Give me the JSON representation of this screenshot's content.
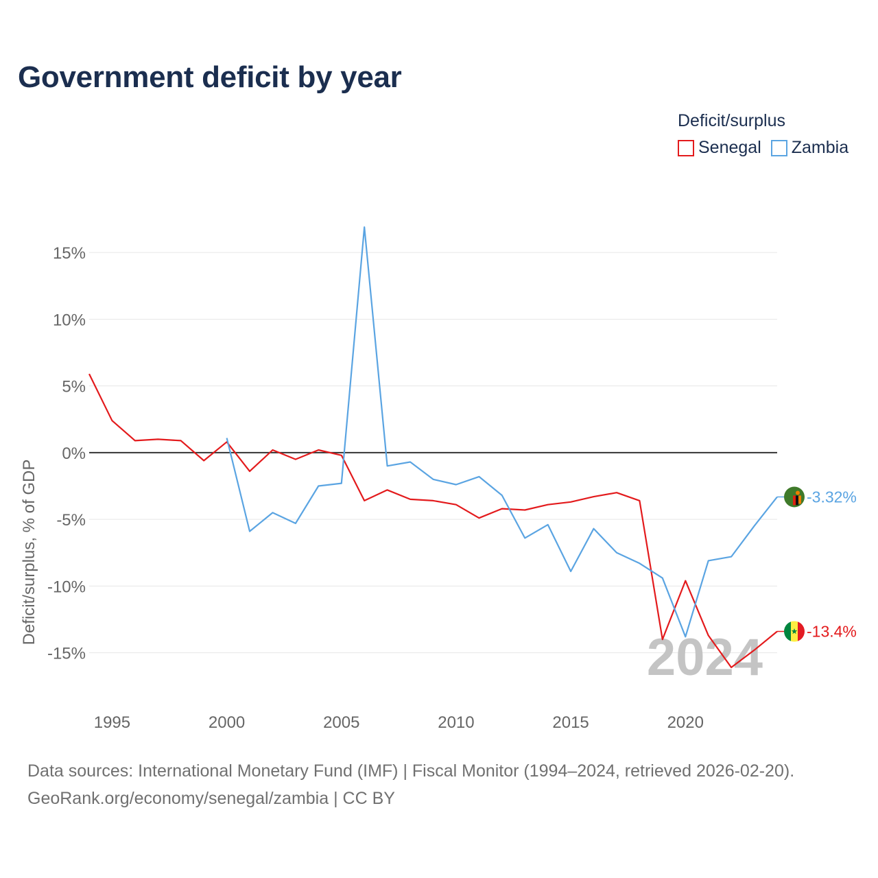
{
  "title": "Government deficit by year",
  "legend": {
    "title": "Deficit/surplus",
    "items": [
      {
        "label": "Senegal",
        "color": "#e31a1c"
      },
      {
        "label": "Zambia",
        "color": "#5aa4e2"
      }
    ]
  },
  "footer": {
    "line1": "Data sources: International Monetary Fund (IMF) | Fiscal Monitor (1994–2024, retrieved 2026-02-20).",
    "line2": "GeoRank.org/economy/senegal/zambia | CC BY"
  },
  "chart_data": {
    "type": "line",
    "title": "Government deficit by year",
    "ylabel": "Deficit/surplus, % of GDP",
    "xlabel": "",
    "xlim": [
      1994,
      2024
    ],
    "ylim": [
      -18,
      18.5
    ],
    "yticks": [
      15,
      10,
      5,
      0,
      -5,
      -10,
      -15
    ],
    "ytick_labels": [
      "15%",
      "10%",
      "5%",
      "0%",
      "-5%",
      "-10%",
      "-15%"
    ],
    "xticks": [
      1995,
      2000,
      2005,
      2010,
      2015,
      2020
    ],
    "xtick_labels": [
      "1995",
      "2000",
      "2005",
      "2010",
      "2015",
      "2020"
    ],
    "year_watermark": "2024",
    "series": [
      {
        "name": "Senegal",
        "color": "#e31a1c",
        "end_label": "-13.4%",
        "x": [
          1994,
          1995,
          1996,
          1997,
          1998,
          1999,
          2000,
          2001,
          2002,
          2003,
          2004,
          2005,
          2006,
          2007,
          2008,
          2009,
          2010,
          2011,
          2012,
          2013,
          2014,
          2015,
          2016,
          2017,
          2018,
          2019,
          2020,
          2021,
          2022,
          2023,
          2024
        ],
        "values": [
          5.9,
          2.4,
          0.9,
          1.0,
          0.9,
          -0.6,
          0.8,
          -1.4,
          0.2,
          -0.5,
          0.2,
          -0.2,
          -3.6,
          -2.8,
          -3.5,
          -3.6,
          -3.9,
          -4.9,
          -4.2,
          -4.3,
          -3.9,
          -3.7,
          -3.3,
          -3.0,
          -3.6,
          -14.0,
          -9.6,
          -13.7,
          -16.1,
          -14.8,
          -13.4
        ]
      },
      {
        "name": "Zambia",
        "color": "#5aa4e2",
        "end_label": "-3.32%",
        "x": [
          2000,
          2001,
          2002,
          2003,
          2004,
          2005,
          2006,
          2007,
          2008,
          2009,
          2010,
          2011,
          2012,
          2013,
          2014,
          2015,
          2016,
          2017,
          2018,
          2019,
          2020,
          2021,
          2022,
          2023,
          2024
        ],
        "values": [
          1.1,
          -5.9,
          -4.5,
          -5.3,
          -2.5,
          -2.3,
          16.9,
          -1.0,
          -0.7,
          -2.0,
          -2.4,
          -1.8,
          -3.2,
          -6.4,
          -5.4,
          -8.9,
          -5.7,
          -7.5,
          -8.3,
          -9.4,
          -13.8,
          -8.1,
          -7.8,
          -5.5,
          -3.32
        ]
      }
    ]
  }
}
